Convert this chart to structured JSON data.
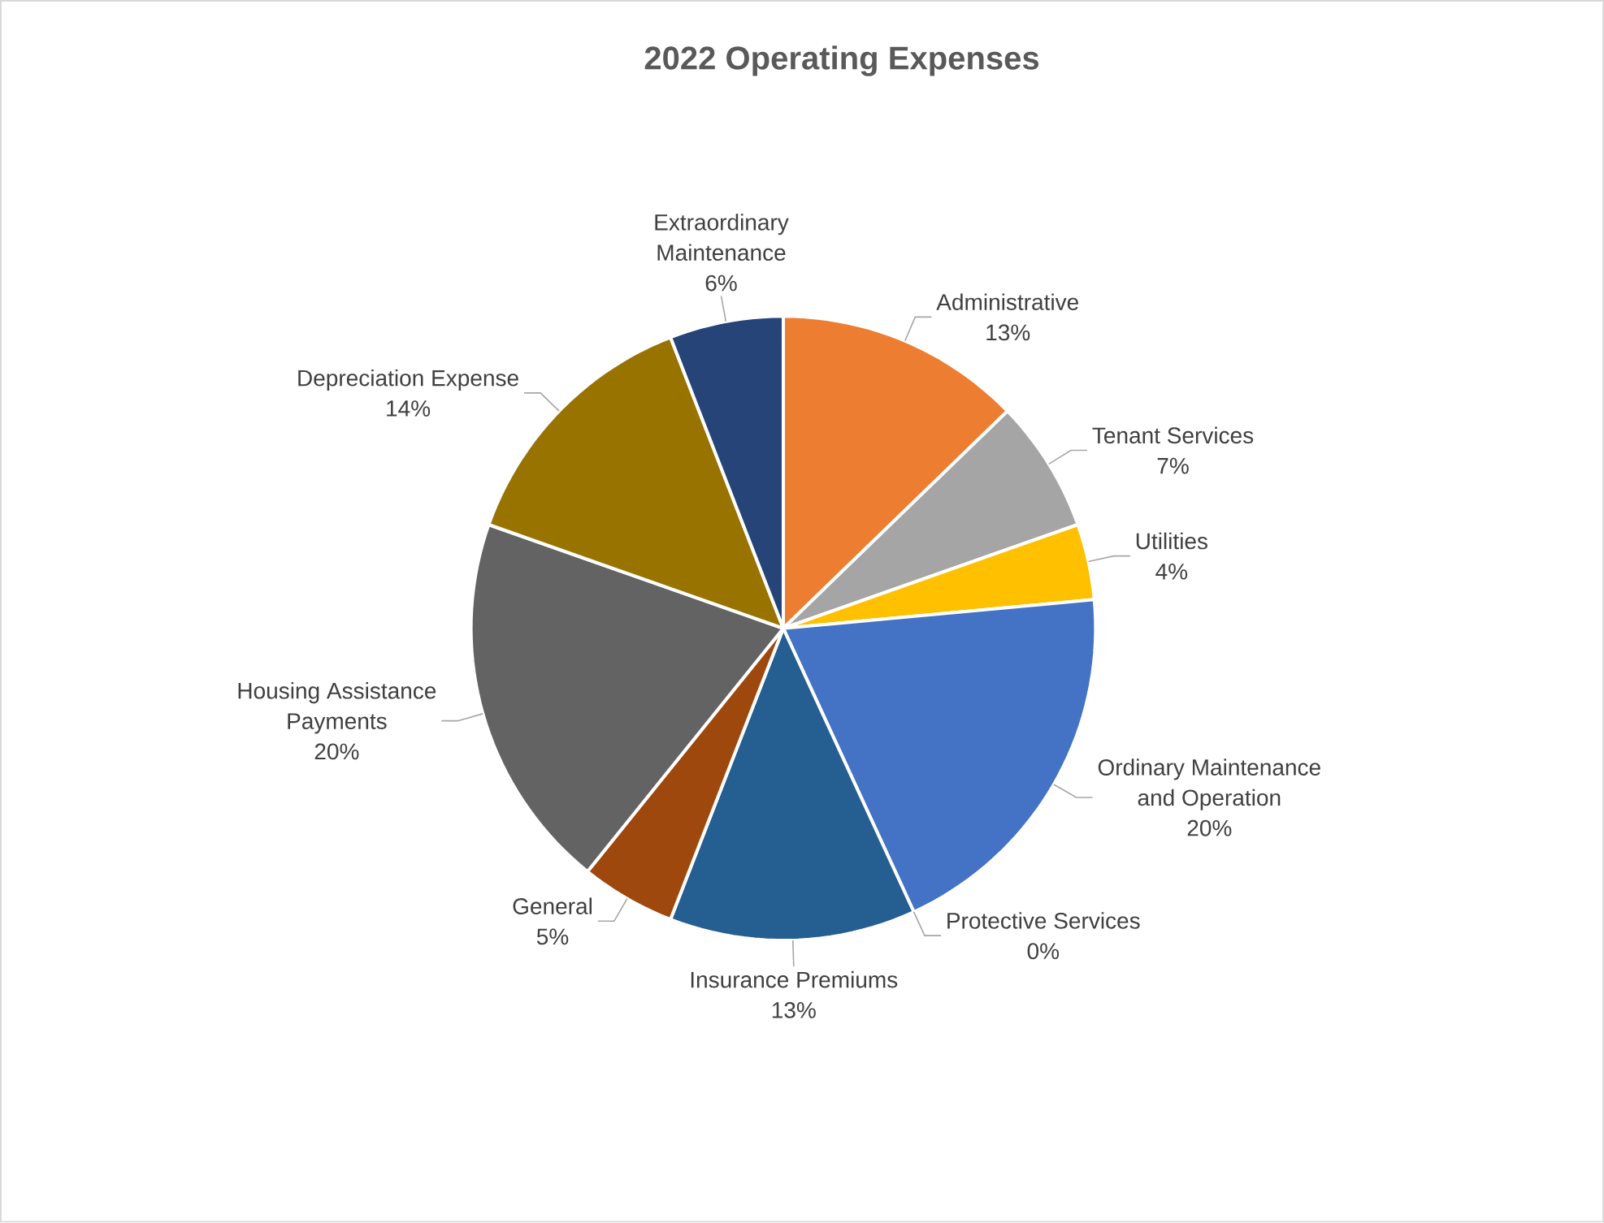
{
  "chart_data": {
    "type": "pie",
    "title": "2022 Operating Expenses",
    "categories": [
      "Administrative",
      "Tenant Services",
      "Utilities",
      "Ordinary Maintenance and Operation",
      "Protective Services",
      "Insurance Premiums",
      "General",
      "Housing Assistance Payments",
      "Depreciation Expense",
      "Extraordinary Maintenance"
    ],
    "values": [
      13,
      7,
      4,
      20,
      0,
      13,
      5,
      20,
      14,
      6
    ],
    "value_labels": [
      "13%",
      "7%",
      "4%",
      "20%",
      "0%",
      "13%",
      "5%",
      "20%",
      "14%",
      "6%"
    ],
    "colors": [
      "#ed7d31",
      "#a5a5a5",
      "#ffc000",
      "#4472c4",
      "#70ad47",
      "#255e91",
      "#9e480e",
      "#636363",
      "#997300",
      "#264478"
    ]
  }
}
